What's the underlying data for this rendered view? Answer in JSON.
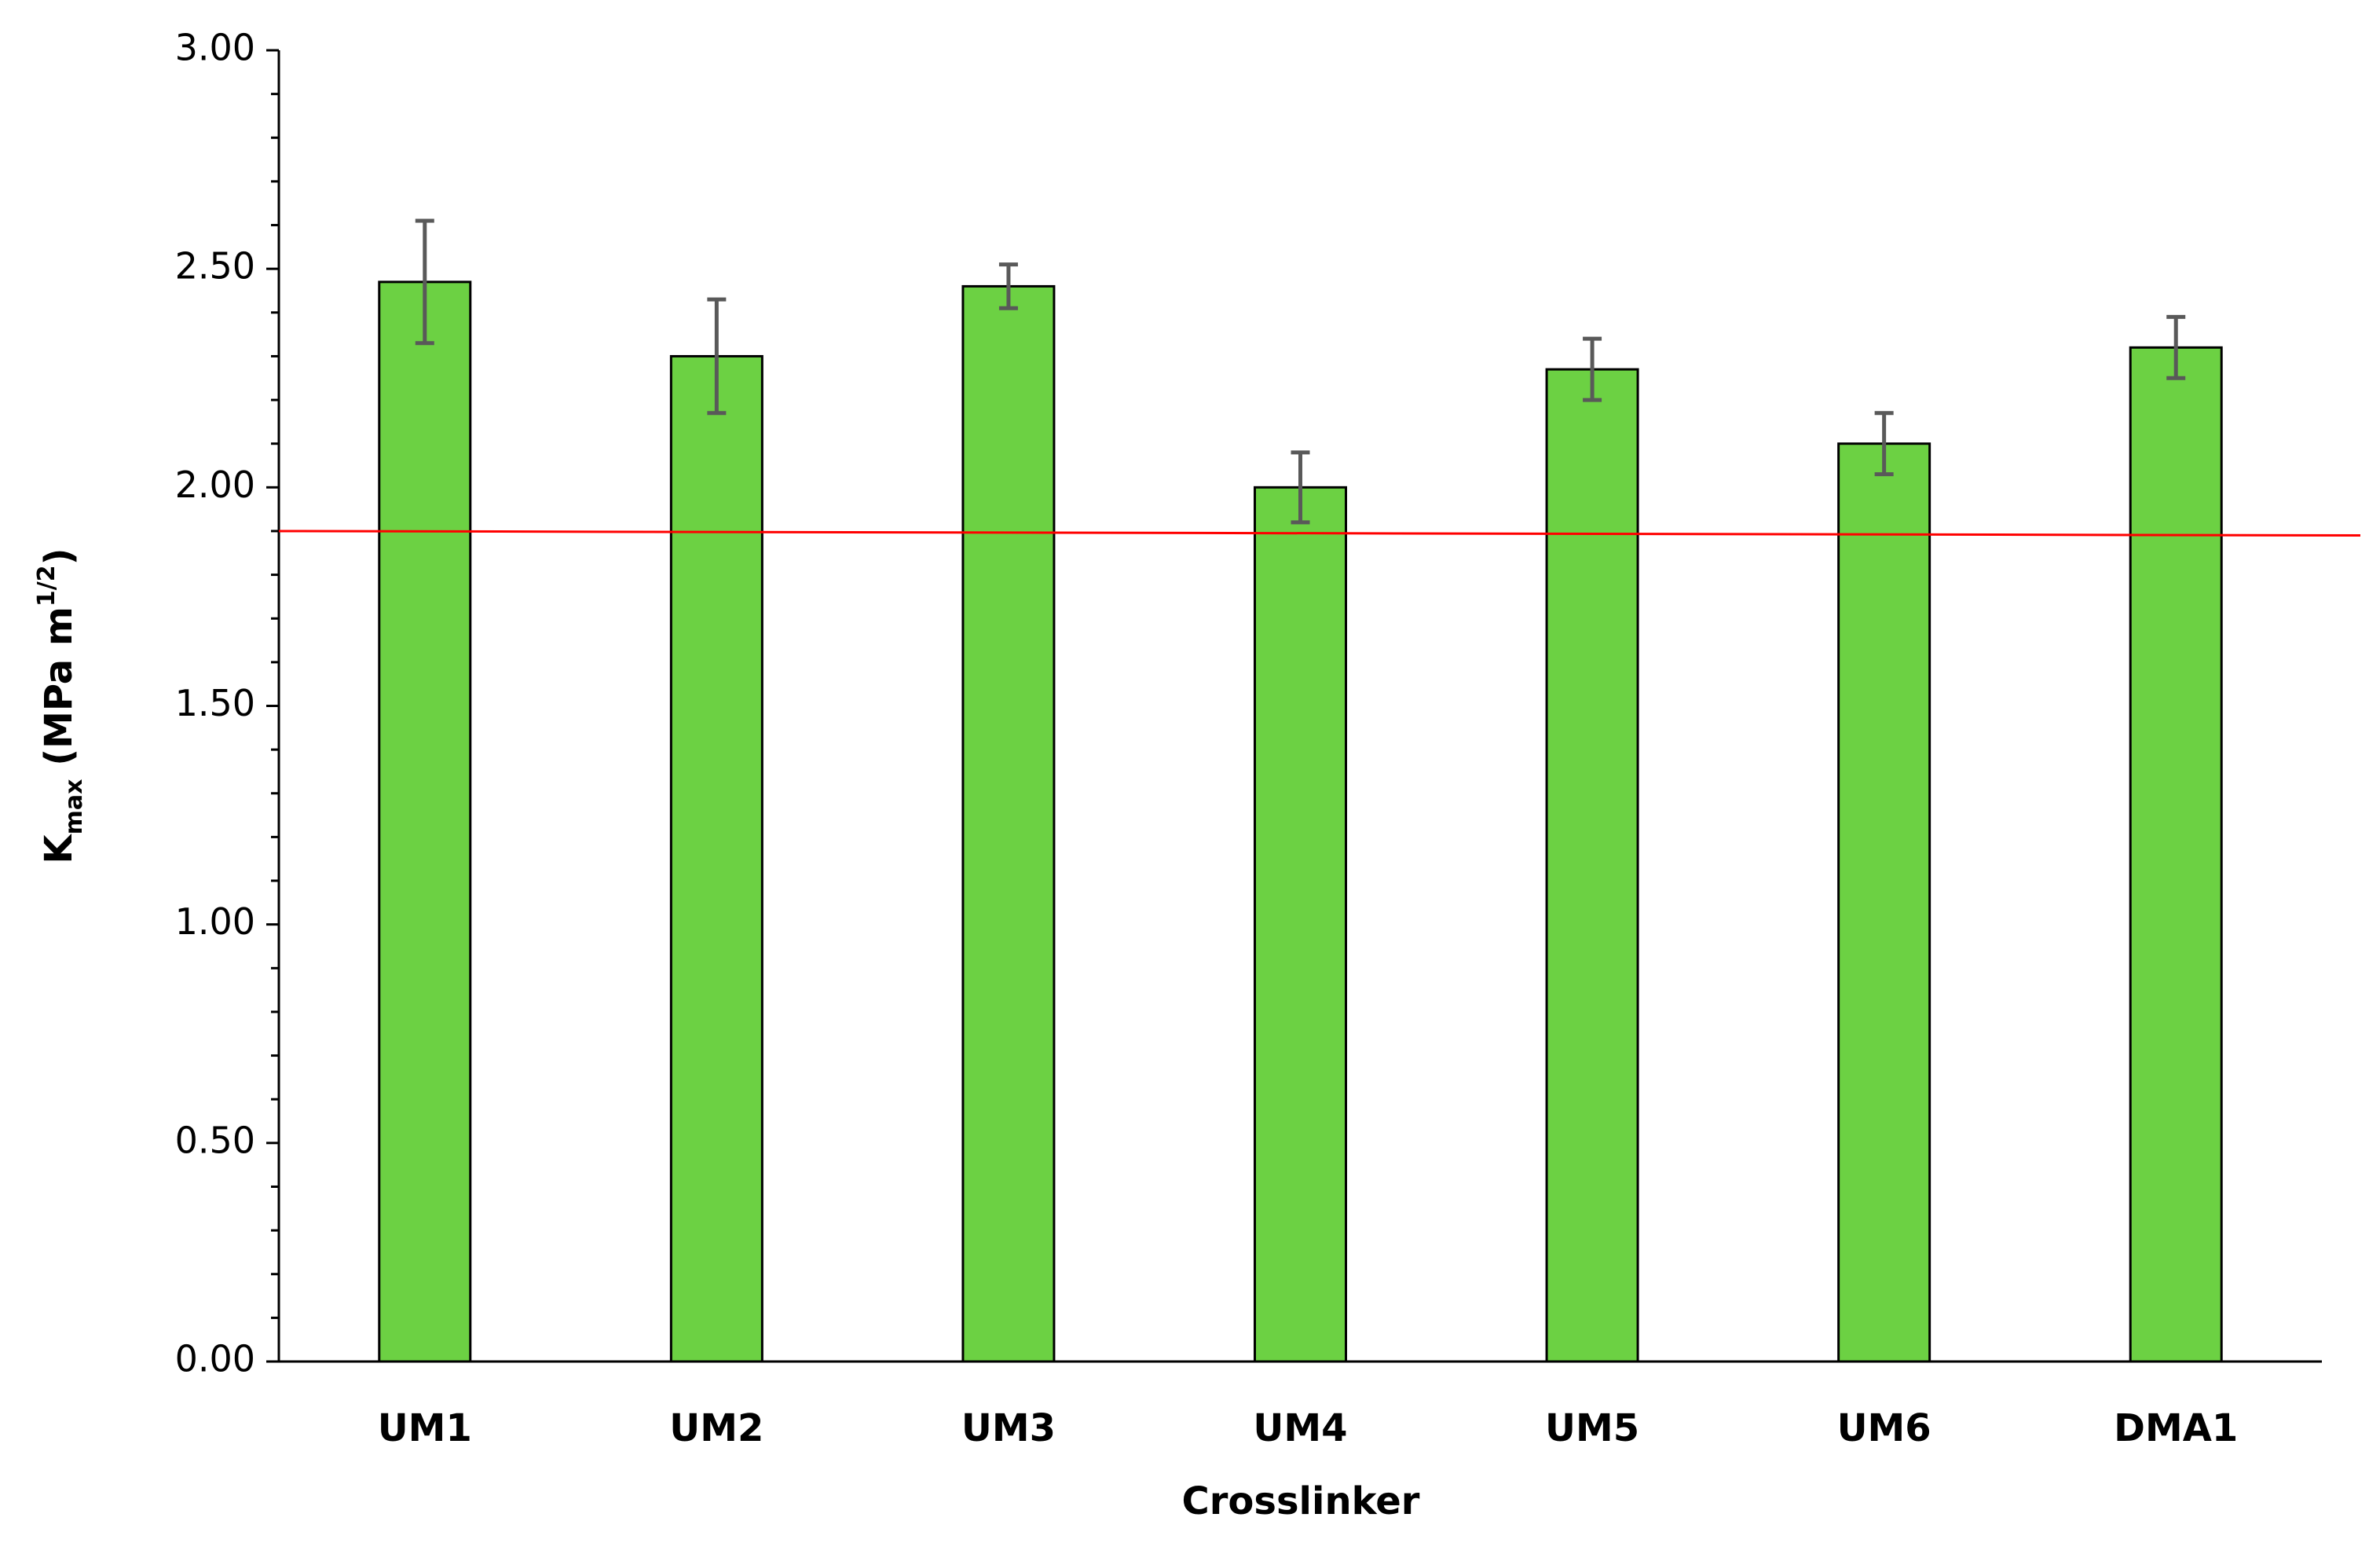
{
  "chart_data": {
    "type": "bar",
    "categories": [
      "UM1",
      "UM2",
      "UM3",
      "UM4",
      "UM5",
      "UM6",
      "DMA1"
    ],
    "values": [
      2.47,
      2.3,
      2.46,
      2.0,
      2.27,
      2.1,
      2.32
    ],
    "errors": [
      0.14,
      0.13,
      0.05,
      0.08,
      0.07,
      0.07,
      0.07
    ],
    "color": "#6cd143",
    "error_color": "#595959",
    "ylim": [
      0,
      3
    ],
    "yticks": [
      {
        "value": 0,
        "label": "0.00"
      },
      {
        "value": 0.5,
        "label": "0.50"
      },
      {
        "value": 1,
        "label": "1.00"
      },
      {
        "value": 1.5,
        "label": "1.50"
      },
      {
        "value": 2,
        "label": "2.00"
      },
      {
        "value": 2.5,
        "label": "2.50"
      },
      {
        "value": 3,
        "label": "3.00"
      }
    ],
    "yminorticks": [
      0.1,
      0.2,
      0.3,
      0.4,
      0.6,
      0.7,
      0.8,
      0.9,
      1.1,
      1.2,
      1.3,
      1.4,
      1.6,
      1.7,
      1.8,
      1.9,
      2.1,
      2.2,
      2.3,
      2.4,
      2.6,
      2.7,
      2.8,
      2.9
    ],
    "reference_line": {
      "values": [
        1.9,
        1.89
      ],
      "color": "#ff0000"
    },
    "xlabel": "Crosslinker",
    "ylabel": [
      {
        "text": "K"
      },
      {
        "text": "max",
        "shift": "sub"
      },
      {
        "text": " (MPa m"
      },
      {
        "text": "1/2",
        "shift": "super"
      },
      {
        "text": ")"
      }
    ],
    "grid": false
  }
}
